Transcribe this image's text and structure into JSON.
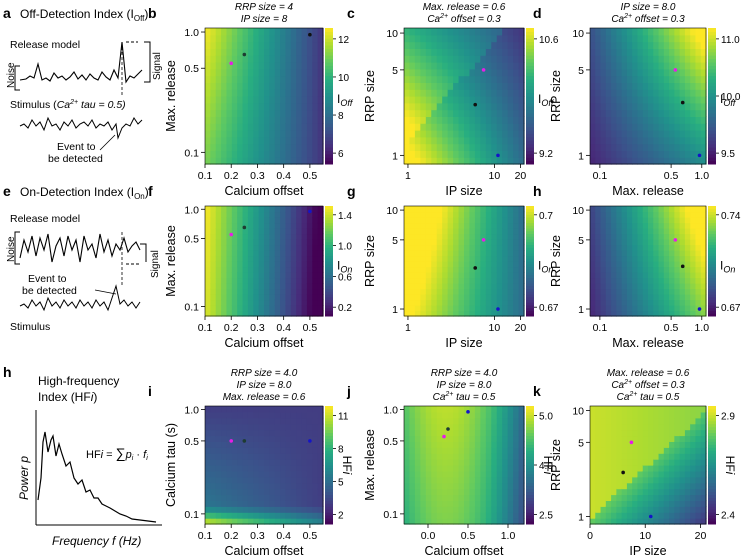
{
  "colormap": [
    "#440154",
    "#472d7b",
    "#3b528b",
    "#2c728e",
    "#21918c",
    "#28ae80",
    "#5ec962",
    "#addc30",
    "#fde725"
  ],
  "marker_colors": {
    "magenta": "#e61ee6",
    "dark": "#1e3c32",
    "blue": "#1414c8",
    "black": "#111111"
  },
  "left": {
    "a": {
      "letter": "a",
      "title": "Off-Detection Index (I",
      "title_sub": "Off",
      "title_end": ")",
      "release_model": "Release model",
      "noise": "Noise",
      "signal": "Signal",
      "stimulus_label": "Stimulus (",
      "stimulus_ca": "Ca",
      "stimulus_sup": "2+",
      "stimulus_rest": " tau = 0.5)",
      "event_line1": "Event to",
      "event_line2": "be detected"
    },
    "e": {
      "letter": "e",
      "title": "On-Detection Index (I",
      "title_sub": "On",
      "title_end": ")",
      "release_model": "Release model",
      "noise": "Noise",
      "signal": "Signal",
      "event_line1": "Event to",
      "event_line2": "be detected",
      "stimulus": "Stimulus"
    },
    "h": {
      "letter": "h",
      "title_line1": "High-frequency",
      "title_line2": "Index (HF",
      "title_i": "i",
      "title_end": ")",
      "ylabel": "Power p",
      "xlabel": "Frequency f (Hz)",
      "formula_left": "HF",
      "formula_i": "i",
      "formula_eq": " = ",
      "formula_sum": "∑",
      "formula_p": "p",
      "formula_pi": "i",
      "formula_dot": " · ",
      "formula_f": "f",
      "formula_fi": "i"
    }
  },
  "chart_data": [
    {
      "id": "b",
      "type": "heatmap",
      "letter": "b",
      "anno": [
        "RRP size = 4",
        "IP size = 8"
      ],
      "xlabel": "Calcium offset",
      "ylabel": "Max. release",
      "cb_label": "I",
      "cb_sub": "Off",
      "xscale": "linear",
      "xlim": [
        0.1,
        0.55
      ],
      "xticks": [
        "0.1",
        "0.2",
        "0.3",
        "0.4",
        "0.5"
      ],
      "yscale": "log",
      "ylim": [
        0.08,
        1.08
      ],
      "yticks": [
        "0.1",
        "0.5",
        "1.0"
      ],
      "cb_ticks": [
        "12",
        "10",
        "8",
        "6"
      ],
      "markers": [
        {
          "x": 0.2,
          "y": 0.55,
          "c": "magenta"
        },
        {
          "x": 0.25,
          "y": 0.65,
          "c": "dark"
        },
        {
          "x": 0.5,
          "y": 0.95,
          "c": "black"
        }
      ]
    },
    {
      "id": "c",
      "type": "heatmap",
      "letter": "c",
      "anno": [
        "Max. release = 0.6",
        "Ca2+ offset = 0.3"
      ],
      "xlabel": "IP size",
      "ylabel": "RRP size",
      "cb_label": "I",
      "cb_sub": "Off",
      "xscale": "log",
      "xlim": [
        0.9,
        22
      ],
      "xticks": [
        "1",
        "10",
        "20"
      ],
      "yscale": "log",
      "ylim": [
        0.85,
        11
      ],
      "yticks": [
        "1",
        "5",
        "10"
      ],
      "cb_ticks": [
        "10.6",
        "9.2"
      ],
      "markers": [
        {
          "x": 7.5,
          "y": 5,
          "c": "magenta"
        },
        {
          "x": 6,
          "y": 2.6,
          "c": "black"
        },
        {
          "x": 11,
          "y": 1,
          "c": "blue"
        }
      ]
    },
    {
      "id": "d",
      "type": "heatmap",
      "letter": "d",
      "anno": [
        "IP size = 8.0",
        "Ca2+ offset = 0.3"
      ],
      "xlabel": "Max. release",
      "ylabel": "RRP size",
      "cb_label": "I",
      "cb_sub": "Off",
      "xscale": "log",
      "xlim": [
        0.08,
        1.1
      ],
      "xticks": [
        "0.1",
        "0.5",
        "1.0"
      ],
      "yscale": "log",
      "ylim": [
        0.85,
        11
      ],
      "yticks": [
        "1",
        "5",
        "10"
      ],
      "cb_ticks": [
        "11.0",
        "10.0",
        "9.5"
      ],
      "markers": [
        {
          "x": 0.55,
          "y": 5,
          "c": "magenta"
        },
        {
          "x": 0.65,
          "y": 2.7,
          "c": "black"
        },
        {
          "x": 0.95,
          "y": 1,
          "c": "blue"
        }
      ]
    },
    {
      "id": "f",
      "type": "heatmap",
      "letter": "f",
      "xlabel": "Calcium offset",
      "ylabel": "Max. release",
      "cb_label": "I",
      "cb_sub": "On",
      "xscale": "linear",
      "xlim": [
        0.1,
        0.55
      ],
      "xticks": [
        "0.1",
        "0.2",
        "0.3",
        "0.4",
        "0.5"
      ],
      "yscale": "log",
      "ylim": [
        0.08,
        1.08
      ],
      "yticks": [
        "0.1",
        "0.5",
        "1.0"
      ],
      "cb_ticks": [
        "1.4",
        "1.0",
        "0.6",
        "0.2"
      ],
      "markers": [
        {
          "x": 0.2,
          "y": 0.55,
          "c": "magenta"
        },
        {
          "x": 0.25,
          "y": 0.65,
          "c": "dark"
        },
        {
          "x": 0.5,
          "y": 0.95,
          "c": "blue"
        }
      ]
    },
    {
      "id": "g",
      "type": "heatmap",
      "letter": "g",
      "xlabel": "IP size",
      "ylabel": "RRP size",
      "cb_label": "I",
      "cb_sub": "On",
      "xscale": "log",
      "xlim": [
        0.9,
        22
      ],
      "xticks": [
        "1",
        "10",
        "20"
      ],
      "yscale": "log",
      "ylim": [
        0.85,
        11
      ],
      "yticks": [
        "1",
        "5",
        "10"
      ],
      "cb_ticks": [
        "0.7",
        "0.67"
      ],
      "markers": [
        {
          "x": 7.5,
          "y": 5,
          "c": "magenta"
        },
        {
          "x": 6,
          "y": 2.6,
          "c": "black"
        },
        {
          "x": 11,
          "y": 1,
          "c": "blue"
        }
      ]
    },
    {
      "id": "h2",
      "type": "heatmap",
      "letter": "h",
      "xlabel": "Max. release",
      "ylabel": "RRP size",
      "cb_label": "I",
      "cb_sub": "On",
      "xscale": "log",
      "xlim": [
        0.08,
        1.1
      ],
      "xticks": [
        "0.1",
        "0.5",
        "1.0"
      ],
      "yscale": "log",
      "ylim": [
        0.85,
        11
      ],
      "yticks": [
        "1",
        "5",
        "10"
      ],
      "cb_ticks": [
        "0.74",
        "0.67"
      ],
      "markers": [
        {
          "x": 0.55,
          "y": 5,
          "c": "magenta"
        },
        {
          "x": 0.65,
          "y": 2.7,
          "c": "black"
        },
        {
          "x": 0.95,
          "y": 1,
          "c": "blue"
        }
      ]
    },
    {
      "id": "i",
      "type": "heatmap",
      "letter": "i",
      "anno": [
        "RRP size = 4.0",
        "IP size = 8.0",
        "Max. release = 0.6"
      ],
      "xlabel": "Calcium offset",
      "ylabel": "Calcium tau (s)",
      "cb_label": "HF",
      "cb_ital": "i",
      "xscale": "linear",
      "xlim": [
        0.1,
        0.55
      ],
      "xticks": [
        "0.1",
        "0.2",
        "0.3",
        "0.4",
        "0.5"
      ],
      "yscale": "log",
      "ylim": [
        0.08,
        1.08
      ],
      "yticks": [
        "0.1",
        "0.5",
        "1.0"
      ],
      "cb_ticks": [
        "11",
        "8",
        "5",
        "2"
      ],
      "markers": [
        {
          "x": 0.2,
          "y": 0.5,
          "c": "magenta"
        },
        {
          "x": 0.25,
          "y": 0.5,
          "c": "dark"
        },
        {
          "x": 0.5,
          "y": 0.5,
          "c": "blue"
        }
      ]
    },
    {
      "id": "j",
      "type": "heatmap",
      "letter": "j",
      "anno": [
        "RRP size = 4.0",
        "IP size = 8.0",
        "Ca2+ tau = 0.5"
      ],
      "xlabel": "Calcium offset",
      "ylabel": "Max. release",
      "cb_label": "HF",
      "cb_ital": "i",
      "xscale": "linear",
      "xlim": [
        -0.3,
        1.2
      ],
      "xticks": [
        "0.0",
        "0.5",
        "1.0"
      ],
      "yscale": "log",
      "ylim": [
        0.08,
        1.08
      ],
      "yticks": [
        "0.1",
        "0.5",
        "1.0"
      ],
      "cb_ticks": [
        "5.0",
        "4.0",
        "2.5"
      ],
      "markers": [
        {
          "x": 0.2,
          "y": 0.55,
          "c": "magenta"
        },
        {
          "x": 0.25,
          "y": 0.65,
          "c": "dark"
        },
        {
          "x": 0.5,
          "y": 0.95,
          "c": "blue"
        }
      ]
    },
    {
      "id": "k",
      "type": "heatmap",
      "letter": "k",
      "anno": [
        "Max. release = 0.6",
        "Ca2+ offset = 0.3",
        "Ca2+ tau = 0.5"
      ],
      "xlabel": "IP size",
      "ylabel": "RRP size",
      "cb_label": "HF",
      "cb_ital": "i",
      "xscale": "linear",
      "xlim": [
        0,
        21
      ],
      "xticks": [
        "0",
        "10",
        "20"
      ],
      "yscale": "log",
      "ylim": [
        0.85,
        11
      ],
      "yticks": [
        "1",
        "5",
        "10"
      ],
      "cb_ticks": [
        "2.9",
        "2.4"
      ],
      "markers": [
        {
          "x": 7.5,
          "y": 5,
          "c": "magenta"
        },
        {
          "x": 6,
          "y": 2.6,
          "c": "black"
        },
        {
          "x": 11,
          "y": 1,
          "c": "blue"
        }
      ]
    }
  ]
}
